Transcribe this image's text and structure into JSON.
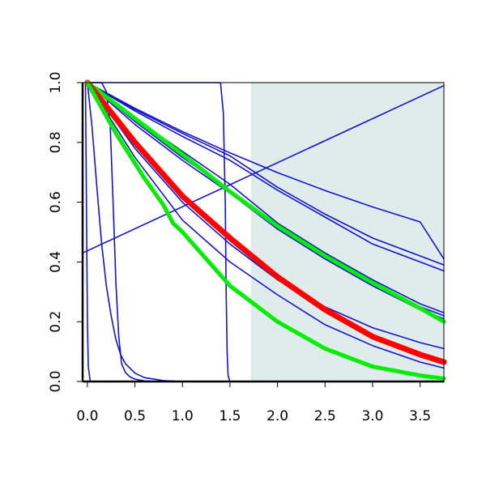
{
  "chart_data": {
    "type": "line",
    "title": "",
    "xlabel": "",
    "ylabel": "",
    "xlim": [
      -0.05,
      3.75
    ],
    "ylim": [
      0,
      1
    ],
    "grid": false,
    "legend": "none",
    "x_ticks": [
      0.0,
      0.5,
      1.0,
      1.5,
      2.0,
      2.5,
      3.0,
      3.5
    ],
    "x_tick_labels": [
      "0.0",
      "0.5",
      "1.0",
      "1.5",
      "2.0",
      "2.5",
      "3.0",
      "3.5"
    ],
    "y_ticks": [
      0.0,
      0.2,
      0.4,
      0.6,
      0.8,
      1.0
    ],
    "y_tick_labels": [
      "0.0",
      "0.2",
      "0.4",
      "0.6",
      "0.8",
      "1.0"
    ],
    "shaded_region": {
      "x": [
        1.72,
        3.75
      ],
      "color": "#e0ecec"
    },
    "colors": {
      "thin": "#1414cc",
      "red": "#ff0000",
      "green": "#00ee00",
      "shade": "#e0ecec"
    },
    "series": [
      {
        "color": "thin",
        "points": [
          [
            -0.02,
            1.0
          ],
          [
            -0.01,
            0.6
          ],
          [
            0.0,
            0.2
          ],
          [
            0.01,
            0.05
          ],
          [
            0.03,
            0.0
          ],
          [
            3.75,
            0.0
          ]
        ]
      },
      {
        "color": "thin",
        "points": [
          [
            0.0,
            1.0
          ],
          [
            0.05,
            0.85
          ],
          [
            0.1,
            0.65
          ],
          [
            0.15,
            0.46
          ],
          [
            0.2,
            0.32
          ],
          [
            0.25,
            0.22
          ],
          [
            0.3,
            0.14
          ],
          [
            0.35,
            0.09
          ],
          [
            0.4,
            0.06
          ],
          [
            0.5,
            0.028
          ],
          [
            0.6,
            0.013
          ],
          [
            0.8,
            0.003
          ],
          [
            1.0,
            0.0
          ],
          [
            3.75,
            0.0
          ]
        ]
      },
      {
        "color": "thin",
        "points": [
          [
            0.0,
            1.0
          ],
          [
            0.15,
            1.0
          ],
          [
            0.2,
            0.97
          ],
          [
            0.24,
            0.86
          ],
          [
            0.27,
            0.6
          ],
          [
            0.3,
            0.33
          ],
          [
            0.33,
            0.15
          ],
          [
            0.36,
            0.06
          ],
          [
            0.4,
            0.03
          ],
          [
            0.45,
            0.015
          ],
          [
            0.5,
            0.008
          ],
          [
            0.6,
            0.002
          ],
          [
            0.7,
            0.0
          ],
          [
            3.75,
            0.0
          ]
        ]
      },
      {
        "color": "thin",
        "points": [
          [
            0.0,
            1.0
          ],
          [
            1.4,
            1.0
          ],
          [
            1.43,
            0.9
          ],
          [
            1.45,
            0.6
          ],
          [
            1.46,
            0.3
          ],
          [
            1.47,
            0.1
          ],
          [
            1.48,
            0.02
          ],
          [
            1.5,
            0.0
          ],
          [
            3.75,
            0.0
          ]
        ]
      },
      {
        "color": "thin",
        "points": [
          [
            -0.05,
            0.43
          ],
          [
            3.75,
            0.99
          ]
        ]
      },
      {
        "color": "thin",
        "points": [
          [
            0.0,
            1.0
          ],
          [
            0.5,
            0.914
          ],
          [
            1.0,
            0.836
          ],
          [
            1.5,
            0.765
          ],
          [
            2.0,
            0.699
          ],
          [
            2.5,
            0.639
          ],
          [
            3.0,
            0.584
          ],
          [
            3.5,
            0.534
          ],
          [
            3.75,
            0.41
          ]
        ]
      },
      {
        "color": "thin",
        "points": [
          [
            0.0,
            1.0
          ],
          [
            0.5,
            0.91
          ],
          [
            1.0,
            0.83
          ],
          [
            1.5,
            0.755
          ],
          [
            2.0,
            0.65
          ],
          [
            2.5,
            0.56
          ],
          [
            3.0,
            0.48
          ],
          [
            3.5,
            0.42
          ],
          [
            3.75,
            0.39
          ]
        ]
      },
      {
        "color": "thin",
        "points": [
          [
            0.0,
            1.0
          ],
          [
            0.5,
            0.905
          ],
          [
            1.0,
            0.82
          ],
          [
            1.5,
            0.74
          ],
          [
            2.0,
            0.64
          ],
          [
            2.5,
            0.55
          ],
          [
            3.0,
            0.46
          ],
          [
            3.5,
            0.4
          ],
          [
            3.75,
            0.37
          ]
        ]
      },
      {
        "color": "thin",
        "points": [
          [
            0.0,
            1.0
          ],
          [
            0.5,
            0.88
          ],
          [
            1.0,
            0.77
          ],
          [
            1.5,
            0.66
          ],
          [
            2.0,
            0.53
          ],
          [
            2.5,
            0.43
          ],
          [
            3.0,
            0.34
          ],
          [
            3.5,
            0.26
          ],
          [
            3.75,
            0.23
          ]
        ]
      },
      {
        "color": "thin",
        "points": [
          [
            0.0,
            1.0
          ],
          [
            0.5,
            0.87
          ],
          [
            1.0,
            0.75
          ],
          [
            1.5,
            0.64
          ],
          [
            2.0,
            0.52
          ],
          [
            2.5,
            0.42
          ],
          [
            3.0,
            0.33
          ],
          [
            3.5,
            0.25
          ],
          [
            3.75,
            0.22
          ]
        ]
      },
      {
        "color": "thin",
        "points": [
          [
            0.0,
            1.0
          ],
          [
            0.5,
            0.86
          ],
          [
            1.0,
            0.74
          ],
          [
            1.5,
            0.63
          ],
          [
            2.0,
            0.51
          ],
          [
            2.5,
            0.41
          ],
          [
            3.0,
            0.32
          ],
          [
            3.5,
            0.24
          ],
          [
            3.75,
            0.21
          ]
        ]
      },
      {
        "color": "thin",
        "points": [
          [
            0.0,
            1.0
          ],
          [
            0.5,
            0.78
          ],
          [
            1.0,
            0.6
          ],
          [
            1.5,
            0.46
          ],
          [
            2.0,
            0.34
          ],
          [
            2.5,
            0.25
          ],
          [
            3.0,
            0.18
          ],
          [
            3.5,
            0.13
          ],
          [
            3.75,
            0.11
          ]
        ]
      },
      {
        "color": "thin",
        "points": [
          [
            0.0,
            1.0
          ],
          [
            0.5,
            0.75
          ],
          [
            1.0,
            0.54
          ],
          [
            1.5,
            0.4
          ],
          [
            2.0,
            0.29
          ],
          [
            2.5,
            0.19
          ],
          [
            3.0,
            0.12
          ],
          [
            3.5,
            0.065
          ],
          [
            3.75,
            0.045
          ]
        ]
      },
      {
        "color": "green",
        "width": 5,
        "points": [
          [
            0.0,
            1.0
          ],
          [
            0.5,
            0.88
          ],
          [
            1.0,
            0.76
          ],
          [
            1.5,
            0.635
          ],
          [
            2.0,
            0.52
          ],
          [
            2.5,
            0.42
          ],
          [
            3.0,
            0.33
          ],
          [
            3.5,
            0.245
          ],
          [
            3.75,
            0.2
          ]
        ]
      },
      {
        "color": "red",
        "width": 7,
        "points": [
          [
            0.0,
            1.0
          ],
          [
            0.5,
            0.8
          ],
          [
            1.0,
            0.62
          ],
          [
            1.5,
            0.48
          ],
          [
            2.0,
            0.35
          ],
          [
            2.5,
            0.24
          ],
          [
            3.0,
            0.15
          ],
          [
            3.5,
            0.09
          ],
          [
            3.75,
            0.065
          ]
        ]
      },
      {
        "color": "green",
        "width": 5,
        "points": [
          [
            0.0,
            1.0
          ],
          [
            0.3,
            0.83
          ],
          [
            0.6,
            0.68
          ],
          [
            0.8,
            0.59
          ],
          [
            0.9,
            0.53
          ],
          [
            1.0,
            0.5
          ],
          [
            1.5,
            0.32
          ],
          [
            2.0,
            0.2
          ],
          [
            2.5,
            0.11
          ],
          [
            3.0,
            0.05
          ],
          [
            3.5,
            0.02
          ],
          [
            3.75,
            0.01
          ]
        ]
      }
    ]
  }
}
